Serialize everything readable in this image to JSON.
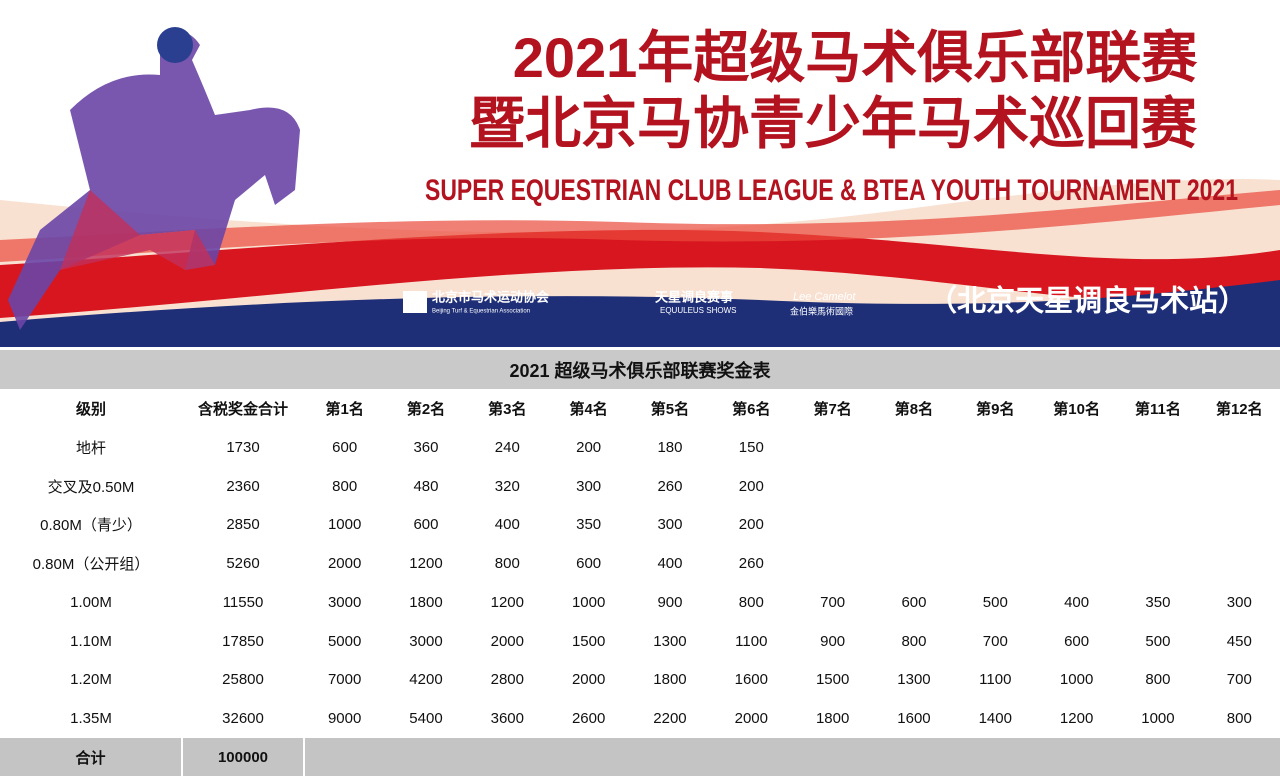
{
  "banner": {
    "title_line1": "2021年超级马术俱乐部联赛",
    "title_line2": "暨北京马协青少年马术巡回赛",
    "subtitle": "SUPER EQUESTRIAN CLUB LEAGUE & BTEA YOUTH TOURNAMENT 2021",
    "logos": [
      {
        "name": "北京市马术运动协会",
        "subname": "Beijing Turf & Equestrian Association"
      },
      {
        "name": "天星调良赛事",
        "subname": "EQUULEUS SHOWS"
      },
      {
        "name": "Lee Camelot",
        "subname": "金伯樂馬術國際"
      }
    ],
    "venue": "（北京天星调良马术站）"
  },
  "table": {
    "title": "2021 超级马术俱乐部联赛奖金表",
    "headers": [
      "级别",
      "含税奖金合计",
      "第1名",
      "第2名",
      "第3名",
      "第4名",
      "第5名",
      "第6名",
      "第7名",
      "第8名",
      "第9名",
      "第10名",
      "第11名",
      "第12名"
    ],
    "rows": [
      [
        "地杆",
        1730,
        600,
        360,
        240,
        200,
        180,
        150
      ],
      [
        "交叉及0.50M",
        2360,
        800,
        480,
        320,
        300,
        260,
        200
      ],
      [
        "0.80M（青少）",
        2850,
        1000,
        600,
        400,
        350,
        300,
        200
      ],
      [
        "0.80M（公开组）",
        5260,
        2000,
        1200,
        800,
        600,
        400,
        260
      ],
      [
        "1.00M",
        11550,
        3000,
        1800,
        1200,
        1000,
        900,
        800,
        700,
        600,
        500,
        400,
        350,
        300
      ],
      [
        "1.10M",
        17850,
        5000,
        3000,
        2000,
        1500,
        1300,
        1100,
        900,
        800,
        700,
        600,
        500,
        450
      ],
      [
        "1.20M",
        25800,
        7000,
        4200,
        2800,
        2000,
        1800,
        1600,
        1500,
        1300,
        1100,
        1000,
        800,
        700
      ],
      [
        "1.35M",
        32600,
        9000,
        5400,
        3600,
        2600,
        2200,
        2000,
        1800,
        1600,
        1400,
        1200,
        1000,
        800
      ]
    ],
    "total": {
      "label": "合计",
      "value": 100000
    }
  }
}
